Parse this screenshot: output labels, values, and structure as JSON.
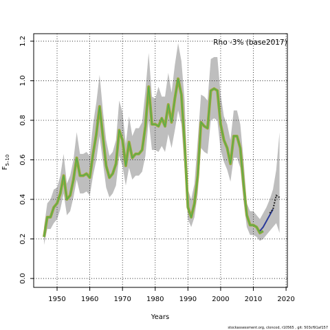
{
  "chart_data": {
    "type": "line",
    "ylabel": "F",
    "ylabel_sub": "5–10",
    "xlabel": "Years",
    "annotation": "Rho -3% (base2017)",
    "footer": "stockassessment.org, cloncod, r10565 , git: 503cf91af157",
    "grid": true,
    "xlim": [
      1942.85,
      2020.4
    ],
    "ylim": [
      -0.045,
      1.238
    ],
    "xticks": [
      1950,
      1960,
      1970,
      1980,
      1990,
      2000,
      2010,
      2020
    ],
    "yticks": [
      {
        "value": 0,
        "label": "0.0"
      },
      {
        "value": 0.2,
        "label": "0.2"
      },
      {
        "value": 0.4,
        "label": "0.4"
      },
      {
        "value": 0.6,
        "label": "0.6"
      },
      {
        "value": 0.8,
        "label": "0.8"
      },
      {
        "value": 1,
        "label": "1.0"
      },
      {
        "value": 1.2,
        "label": "1.2"
      }
    ],
    "band": {
      "color": "#bebebe",
      "x": [
        1946,
        1947,
        1948,
        1949,
        1950,
        1951,
        1952,
        1953,
        1954,
        1955,
        1956,
        1957,
        1958,
        1959,
        1960,
        1961,
        1962,
        1963,
        1964,
        1965,
        1966,
        1967,
        1968,
        1969,
        1970,
        1971,
        1972,
        1973,
        1974,
        1975,
        1976,
        1977,
        1978,
        1979,
        1980,
        1981,
        1982,
        1983,
        1984,
        1985,
        1986,
        1987,
        1988,
        1989,
        1990,
        1991,
        1992,
        1993,
        1994,
        1995,
        1996,
        1997,
        1998,
        1999,
        2000,
        2001,
        2002,
        2003,
        2004,
        2005,
        2006,
        2007,
        2008,
        2009,
        2010,
        2011,
        2012,
        2013,
        2014,
        2015,
        2016,
        2017,
        2018
      ],
      "upper": [
        0.26,
        0.38,
        0.4,
        0.45,
        0.46,
        0.52,
        0.63,
        0.48,
        0.52,
        0.6,
        0.74,
        0.63,
        0.63,
        0.64,
        0.62,
        0.78,
        0.89,
        1.03,
        0.85,
        0.7,
        0.62,
        0.64,
        0.7,
        0.9,
        0.84,
        0.68,
        0.82,
        0.72,
        0.76,
        0.76,
        0.79,
        0.95,
        1.14,
        0.92,
        0.91,
        0.97,
        0.92,
        0.92,
        1.04,
        0.94,
        1.08,
        1.19,
        1.1,
        0.9,
        0.45,
        0.4,
        0.48,
        0.7,
        0.93,
        0.92,
        0.9,
        1.11,
        1.12,
        1.12,
        0.93,
        0.82,
        0.78,
        0.7,
        0.85,
        0.85,
        0.78,
        0.6,
        0.38,
        0.34,
        0.34,
        0.32,
        0.3,
        0.33,
        0.36,
        0.4,
        0.45,
        0.55,
        0.74
      ],
      "lower": [
        0.17,
        0.25,
        0.25,
        0.28,
        0.3,
        0.35,
        0.43,
        0.32,
        0.34,
        0.41,
        0.5,
        0.43,
        0.43,
        0.44,
        0.42,
        0.52,
        0.6,
        0.72,
        0.59,
        0.46,
        0.41,
        0.43,
        0.47,
        0.62,
        0.57,
        0.47,
        0.56,
        0.5,
        0.52,
        0.52,
        0.54,
        0.62,
        0.8,
        0.65,
        0.65,
        0.64,
        0.67,
        0.64,
        0.73,
        0.66,
        0.75,
        0.85,
        0.78,
        0.55,
        0.3,
        0.26,
        0.31,
        0.43,
        0.66,
        0.64,
        0.63,
        0.8,
        0.81,
        0.8,
        0.65,
        0.59,
        0.55,
        0.49,
        0.61,
        0.61,
        0.56,
        0.39,
        0.26,
        0.22,
        0.22,
        0.21,
        0.19,
        0.2,
        0.22,
        0.24,
        0.26,
        0.28,
        0.23
      ]
    },
    "series": [
      {
        "color": "#9aa83a",
        "x": [
          1946,
          1947,
          1948,
          1949,
          1950,
          1951,
          1952,
          1953,
          1954,
          1955,
          1956,
          1957,
          1958,
          1959,
          1960,
          1961,
          1962,
          1963,
          1964,
          1965,
          1966,
          1967,
          1968,
          1969,
          1970,
          1971,
          1972,
          1973,
          1974,
          1975,
          1976,
          1977,
          1978,
          1979,
          1980,
          1981,
          1982,
          1983,
          1984,
          1985,
          1986,
          1987,
          1988,
          1989,
          1990,
          1991,
          1992,
          1993,
          1994,
          1995,
          1996,
          1997,
          1998,
          1999,
          2000,
          2001,
          2002,
          2003,
          2004,
          2005,
          2006,
          2007,
          2008,
          2009,
          2010,
          2011,
          2012,
          2013
        ],
        "values": [
          0.21,
          0.31,
          0.31,
          0.36,
          0.38,
          0.43,
          0.52,
          0.4,
          0.42,
          0.5,
          0.61,
          0.52,
          0.52,
          0.53,
          0.51,
          0.63,
          0.73,
          0.87,
          0.72,
          0.57,
          0.51,
          0.53,
          0.58,
          0.75,
          0.7,
          0.57,
          0.69,
          0.61,
          0.63,
          0.63,
          0.65,
          0.77,
          0.97,
          0.78,
          0.78,
          0.77,
          0.81,
          0.77,
          0.88,
          0.79,
          0.91,
          1.01,
          0.93,
          0.68,
          0.36,
          0.31,
          0.38,
          0.52,
          0.79,
          0.77,
          0.76,
          0.95,
          0.96,
          0.95,
          0.78,
          0.7,
          0.66,
          0.58,
          0.72,
          0.72,
          0.66,
          0.48,
          0.32,
          0.27,
          0.27,
          0.26,
          0.23,
          0.24
        ]
      },
      {
        "color": "#2a3a9a",
        "x": [
          2012,
          2013,
          2014,
          2015,
          2016
        ],
        "values": [
          0.24,
          0.26,
          0.29,
          0.32,
          0.35
        ]
      },
      {
        "color": "#222222",
        "dashed": true,
        "x": [
          2015,
          2016,
          2017,
          2018
        ],
        "values": [
          0.33,
          0.35,
          0.42,
          0.41
        ]
      }
    ]
  }
}
